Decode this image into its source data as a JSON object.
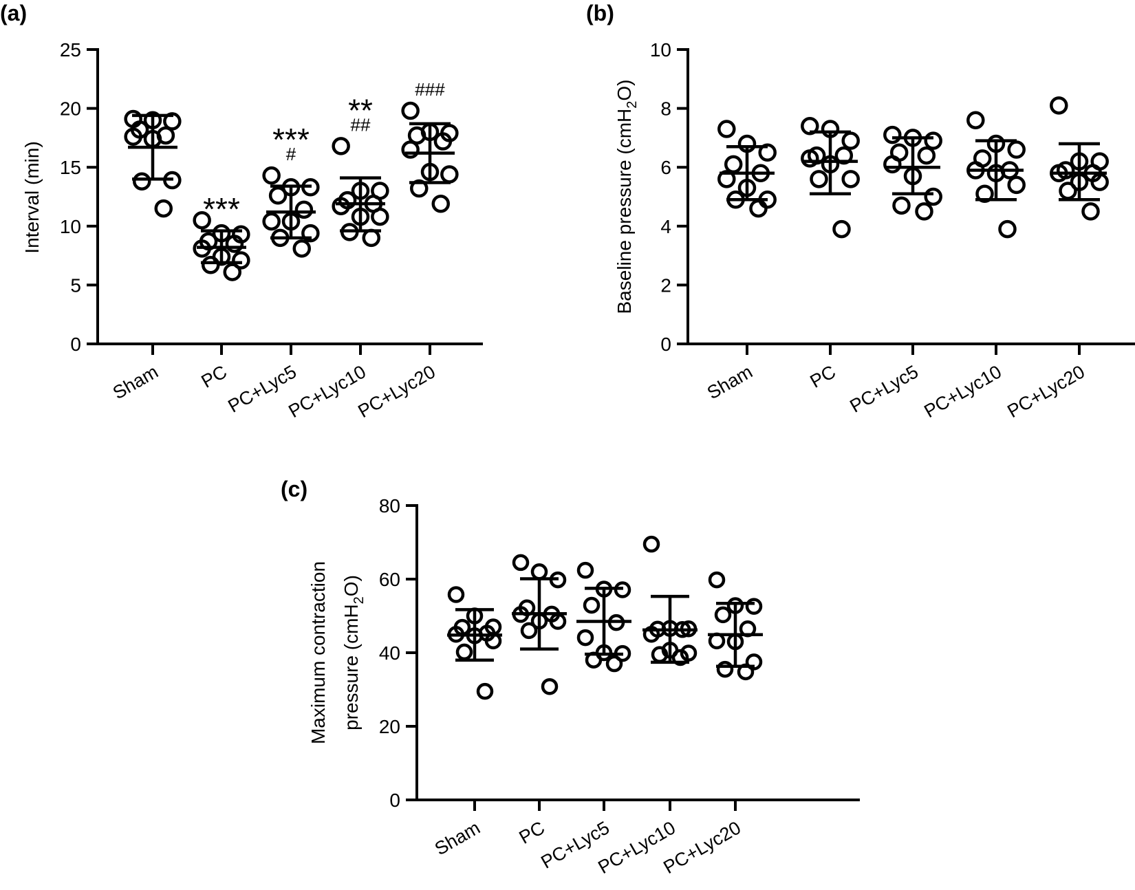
{
  "chart_data": [
    {
      "id": "a",
      "panel_label": "(a)",
      "type": "scatter",
      "subtype": "dot-plot-mean-sd",
      "ylabel": "Interval (min)",
      "ylim": [
        0,
        25
      ],
      "yticks": [
        0,
        5,
        10,
        15,
        20,
        25
      ],
      "categories": [
        "Sham",
        "PC",
        "PC+Lyc5",
        "PC+Lyc10",
        "PC+Lyc20"
      ],
      "groups": [
        {
          "name": "Sham",
          "points": [
            19.1,
            19.0,
            18.9,
            18.2,
            17.7,
            17.6,
            17.4,
            13.9,
            13.8,
            11.5
          ],
          "mean": 16.7,
          "sd_upper": 19.4,
          "sd_lower": 14.0,
          "annotations": []
        },
        {
          "name": "PC",
          "points": [
            10.5,
            9.4,
            9.3,
            8.7,
            8.5,
            8.1,
            7.4,
            7.1,
            6.7,
            6.1
          ],
          "mean": 8.2,
          "sd_upper": 9.6,
          "sd_lower": 6.9,
          "annotations": [
            "***"
          ]
        },
        {
          "name": "PC+Lyc5",
          "points": [
            14.3,
            13.3,
            13.3,
            12.6,
            11.4,
            10.4,
            10.4,
            9.4,
            9.0,
            8.1
          ],
          "mean": 11.2,
          "sd_upper": 13.4,
          "sd_lower": 9.0,
          "annotations": [
            "***",
            "#"
          ]
        },
        {
          "name": "PC+Lyc10",
          "points": [
            16.8,
            13.0,
            13.0,
            12.2,
            11.9,
            11.7,
            10.8,
            10.8,
            9.5,
            9.0
          ],
          "mean": 11.9,
          "sd_upper": 14.1,
          "sd_lower": 9.6,
          "annotations": [
            "**",
            "##"
          ]
        },
        {
          "name": "PC+Lyc20",
          "points": [
            19.8,
            18.0,
            17.9,
            17.7,
            17.2,
            16.5,
            14.6,
            14.4,
            13.2,
            11.9
          ],
          "mean": 16.2,
          "sd_upper": 18.7,
          "sd_lower": 13.7,
          "annotations": [
            "###"
          ]
        }
      ]
    },
    {
      "id": "b",
      "panel_label": "(b)",
      "type": "scatter",
      "subtype": "dot-plot-mean-sd",
      "ylabel": "Baseline pressure (cmH2O)",
      "ylabel_parts": [
        "Baseline pressure (cmH",
        "2",
        "O)"
      ],
      "ylim": [
        0,
        10
      ],
      "yticks": [
        0,
        2,
        4,
        6,
        8,
        10
      ],
      "categories": [
        "Sham",
        "PC",
        "PC+Lyc5",
        "PC+Lyc10",
        "PC+Lyc20"
      ],
      "groups": [
        {
          "name": "Sham",
          "points": [
            7.3,
            6.8,
            6.5,
            6.1,
            5.8,
            5.6,
            5.3,
            4.9,
            4.9,
            4.6
          ],
          "mean": 5.8,
          "sd_upper": 6.7,
          "sd_lower": 4.9,
          "annotations": []
        },
        {
          "name": "PC",
          "points": [
            7.4,
            7.3,
            6.9,
            6.4,
            6.4,
            6.3,
            6.1,
            5.6,
            5.6,
            3.9
          ],
          "mean": 6.2,
          "sd_upper": 7.2,
          "sd_lower": 5.1,
          "annotations": []
        },
        {
          "name": "PC+Lyc5",
          "points": [
            7.1,
            7.0,
            6.9,
            6.5,
            6.4,
            6.1,
            5.7,
            5.0,
            4.7,
            4.5
          ],
          "mean": 6.0,
          "sd_upper": 7.0,
          "sd_lower": 5.1,
          "annotations": []
        },
        {
          "name": "PC+Lyc10",
          "points": [
            7.6,
            6.8,
            6.6,
            6.3,
            5.9,
            5.9,
            5.8,
            5.4,
            5.1,
            3.9
          ],
          "mean": 5.9,
          "sd_upper": 6.9,
          "sd_lower": 4.9,
          "annotations": []
        },
        {
          "name": "PC+Lyc20",
          "points": [
            8.1,
            6.2,
            6.2,
            5.9,
            5.8,
            5.8,
            5.5,
            5.5,
            5.2,
            4.5
          ],
          "mean": 5.8,
          "sd_upper": 6.8,
          "sd_lower": 4.9,
          "annotations": []
        }
      ]
    },
    {
      "id": "c",
      "panel_label": "(c)",
      "type": "scatter",
      "subtype": "dot-plot-mean-sd",
      "ylabel": "Maximum contraction pressure (cmH2O)",
      "ylabel_line1": "Maximum contraction",
      "ylabel_line2_parts": [
        "pressure (cmH",
        "2",
        "O)"
      ],
      "ylim": [
        0,
        80
      ],
      "yticks": [
        0,
        20,
        40,
        60,
        80
      ],
      "categories": [
        "Sham",
        "PC",
        "PC+Lyc5",
        "PC+Lyc10",
        "PC+Lyc20"
      ],
      "groups": [
        {
          "name": "Sham",
          "points": [
            55.8,
            50.0,
            47.0,
            46.9,
            45.3,
            45.0,
            44.6,
            43.2,
            40.2,
            29.5
          ],
          "mean": 44.8,
          "sd_upper": 51.7,
          "sd_lower": 38.0,
          "annotations": []
        },
        {
          "name": "PC",
          "points": [
            64.5,
            62.0,
            59.8,
            52.2,
            50.5,
            50.4,
            48.6,
            48.5,
            46.0,
            30.8
          ],
          "mean": 50.6,
          "sd_upper": 60.1,
          "sd_lower": 41.0,
          "annotations": []
        },
        {
          "name": "PC+Lyc5",
          "points": [
            62.4,
            57.3,
            57.1,
            52.9,
            48.2,
            44.1,
            40.0,
            39.8,
            38.0,
            37.0
          ],
          "mean": 48.5,
          "sd_upper": 57.5,
          "sd_lower": 39.6,
          "annotations": []
        },
        {
          "name": "PC+Lyc10",
          "points": [
            69.5,
            46.6,
            46.5,
            46.4,
            46.3,
            45.0,
            40.7,
            39.9,
            39.5,
            38.7
          ],
          "mean": 46.2,
          "sd_upper": 55.3,
          "sd_lower": 37.4,
          "annotations": []
        },
        {
          "name": "PC+Lyc20",
          "points": [
            59.8,
            52.8,
            52.6,
            50.3,
            46.5,
            43.2,
            43.0,
            37.5,
            35.5,
            34.8
          ],
          "mean": 44.9,
          "sd_upper": 53.4,
          "sd_lower": 36.3,
          "annotations": []
        }
      ]
    }
  ]
}
